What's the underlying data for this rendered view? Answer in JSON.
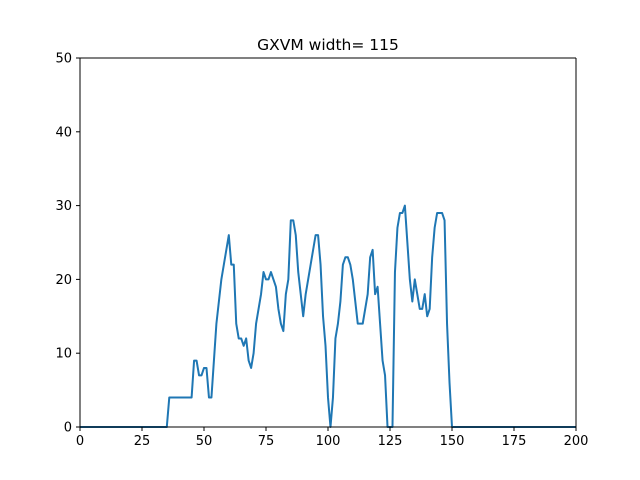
{
  "chart_data": {
    "type": "line",
    "title": "GXVM width= 115",
    "xlabel": "",
    "ylabel": "",
    "xlim": [
      0,
      200
    ],
    "ylim": [
      0,
      50
    ],
    "x_ticks": [
      "0",
      "25",
      "50",
      "75",
      "100",
      "125",
      "150",
      "175",
      "200"
    ],
    "y_ticks": [
      "0",
      "10",
      "20",
      "30",
      "40",
      "50"
    ],
    "grid": false,
    "series": [
      {
        "color": "#1f77b4",
        "points": [
          [
            0,
            0
          ],
          [
            35,
            0
          ],
          [
            36,
            4
          ],
          [
            45,
            4
          ],
          [
            46,
            9
          ],
          [
            47,
            9
          ],
          [
            48,
            7
          ],
          [
            49,
            7
          ],
          [
            50,
            8
          ],
          [
            51,
            8
          ],
          [
            52,
            4
          ],
          [
            53,
            4
          ],
          [
            55,
            14
          ],
          [
            57,
            20
          ],
          [
            58,
            22
          ],
          [
            60,
            26
          ],
          [
            61,
            22
          ],
          [
            62,
            22
          ],
          [
            63,
            14
          ],
          [
            64,
            12
          ],
          [
            65,
            12
          ],
          [
            66,
            11
          ],
          [
            67,
            12
          ],
          [
            68,
            9
          ],
          [
            69,
            8
          ],
          [
            70,
            10
          ],
          [
            71,
            14
          ],
          [
            72,
            16
          ],
          [
            73,
            18
          ],
          [
            74,
            21
          ],
          [
            75,
            20
          ],
          [
            76,
            20
          ],
          [
            77,
            21
          ],
          [
            78,
            20
          ],
          [
            79,
            19
          ],
          [
            80,
            16
          ],
          [
            81,
            14
          ],
          [
            82,
            13
          ],
          [
            83,
            18
          ],
          [
            84,
            20
          ],
          [
            85,
            28
          ],
          [
            86,
            28
          ],
          [
            87,
            26
          ],
          [
            88,
            21
          ],
          [
            89,
            18
          ],
          [
            90,
            15
          ],
          [
            91,
            18
          ],
          [
            92,
            20
          ],
          [
            93,
            22
          ],
          [
            94,
            24
          ],
          [
            95,
            26
          ],
          [
            96,
            26
          ],
          [
            97,
            22
          ],
          [
            98,
            15
          ],
          [
            99,
            11
          ],
          [
            100,
            4
          ],
          [
            101,
            0
          ],
          [
            102,
            4
          ],
          [
            103,
            12
          ],
          [
            104,
            14
          ],
          [
            105,
            17
          ],
          [
            106,
            22
          ],
          [
            107,
            23
          ],
          [
            108,
            23
          ],
          [
            109,
            22
          ],
          [
            110,
            20
          ],
          [
            111,
            17
          ],
          [
            112,
            14
          ],
          [
            113,
            14
          ],
          [
            114,
            14
          ],
          [
            115,
            16
          ],
          [
            116,
            18
          ],
          [
            117,
            23
          ],
          [
            118,
            24
          ],
          [
            119,
            18
          ],
          [
            120,
            19
          ],
          [
            121,
            14
          ],
          [
            122,
            9
          ],
          [
            123,
            7
          ],
          [
            124,
            0
          ],
          [
            126,
            0
          ],
          [
            127,
            21
          ],
          [
            128,
            27
          ],
          [
            129,
            29
          ],
          [
            130,
            29
          ],
          [
            131,
            30
          ],
          [
            132,
            25
          ],
          [
            133,
            20
          ],
          [
            134,
            17
          ],
          [
            135,
            20
          ],
          [
            136,
            18
          ],
          [
            137,
            16
          ],
          [
            138,
            16
          ],
          [
            139,
            18
          ],
          [
            140,
            15
          ],
          [
            141,
            16
          ],
          [
            142,
            23
          ],
          [
            143,
            27
          ],
          [
            144,
            29
          ],
          [
            145,
            29
          ],
          [
            146,
            29
          ],
          [
            147,
            28
          ],
          [
            148,
            14
          ],
          [
            149,
            6
          ],
          [
            150,
            0
          ],
          [
            200,
            0
          ]
        ]
      }
    ]
  }
}
